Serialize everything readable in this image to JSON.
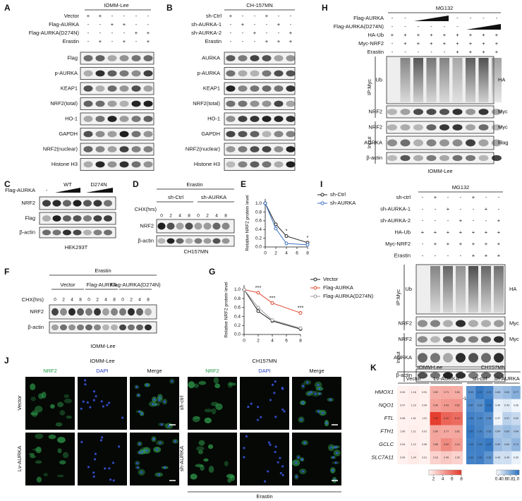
{
  "panels": {
    "A": {
      "letter": "A",
      "title": "IOMM-Lee",
      "conditions": [
        {
          "name": "Vector",
          "signs": [
            "+",
            "+",
            "-",
            "-",
            "-",
            "-"
          ]
        },
        {
          "name": "Flag-AURKA",
          "signs": [
            "-",
            "-",
            "+",
            "+",
            "-",
            "-"
          ]
        },
        {
          "name": "Flag-AURKA(D274N)",
          "signs": [
            "-",
            "-",
            "-",
            "-",
            "+",
            "+"
          ]
        },
        {
          "name": "Erastin",
          "signs": [
            "-",
            "+",
            "-",
            "+",
            "-",
            "+"
          ]
        }
      ],
      "bands": [
        "Flag",
        "p-AURKA",
        "KEAP1",
        "NRF2(total)",
        "HO-1",
        "GAPDH",
        "NRF2(nuclear)",
        "Histone H3"
      ]
    },
    "B": {
      "letter": "B",
      "title": "CH-157MN",
      "conditions": [
        {
          "name": "sh-Ctrl",
          "signs": [
            "+",
            "-",
            "-",
            "+",
            "-",
            "-"
          ]
        },
        {
          "name": "sh-AURKA-1",
          "signs": [
            "-",
            "+",
            "-",
            "-",
            "+",
            "-"
          ]
        },
        {
          "name": "sh-AURKA-2",
          "signs": [
            "-",
            "-",
            "+",
            "-",
            "-",
            "+"
          ]
        },
        {
          "name": "Erastin",
          "signs": [
            "-",
            "-",
            "-",
            "+",
            "+",
            "+"
          ]
        }
      ],
      "bands": [
        "AURKA",
        "p-AURKA",
        "KEAP1",
        "NRF2(total)",
        "HO-1",
        "GAPDH",
        "NRF2(nuclear)",
        "Histone H3"
      ]
    },
    "C": {
      "letter": "C",
      "row_label": "Flag-AURKA",
      "none": "-",
      "groups": [
        "WT",
        "D274N"
      ],
      "bands": [
        "NRF2",
        "Flag",
        "β-actin"
      ],
      "caption": "HEK293T"
    },
    "D": {
      "letter": "D",
      "treatment": "Erastin",
      "groups": [
        "sh-Ctrl",
        "sh-AURKA"
      ],
      "time_label": "CHX(hrs)",
      "times": [
        0,
        2,
        4,
        8,
        0,
        2,
        4,
        8
      ],
      "bands": [
        "NRF2",
        "β-actin"
      ],
      "caption": "CH157MN"
    },
    "E": {
      "letter": "E",
      "type": "line",
      "ylabel": "Relative NRF2 protein level",
      "x": [
        0,
        2,
        4,
        8
      ],
      "xlim": [
        0,
        8
      ],
      "xticks": [
        0,
        2,
        4,
        6,
        8
      ],
      "ylim": [
        0,
        1.1
      ],
      "yticks": [
        {
          "value": 0,
          "label": "0.0"
        },
        0.2,
        0.4,
        0.6,
        0.8,
        {
          "value": 1,
          "label": "1.0"
        }
      ],
      "series": [
        {
          "name": "sh-Ctrl",
          "color": "#222222",
          "values": [
            1,
            0.52,
            0.25,
            0.1
          ]
        },
        {
          "name": "sh-AURKA",
          "color": "#3a6fc4",
          "values": [
            1,
            0.42,
            0.08,
            0.05
          ]
        }
      ],
      "annotations": [
        {
          "text": "*",
          "x": 4
        },
        {
          "text": "*",
          "x": 8
        }
      ]
    },
    "F": {
      "letter": "F",
      "treatment": "Erastin",
      "groups": [
        "Vector",
        "Flag-AURKA",
        "Flag-AURKA(D274N)"
      ],
      "time_label": "CHX(hrs)",
      "times": [
        0,
        2,
        4,
        8,
        0,
        2,
        4,
        8,
        0,
        2,
        4,
        8
      ],
      "bands": [
        "NRF2",
        "β-actin"
      ],
      "caption": "IOMM-Lee"
    },
    "G": {
      "letter": "G",
      "type": "line",
      "ylabel": "Relative NRF2 protein level",
      "x": [
        0,
        2,
        4,
        8
      ],
      "xlim": [
        0,
        8
      ],
      "xticks": [
        0,
        2,
        4,
        6,
        8
      ],
      "ylim": [
        0,
        1.1
      ],
      "yticks": [
        {
          "value": 0,
          "label": "0.0"
        },
        0.2,
        0.4,
        0.6,
        0.8,
        {
          "value": 1,
          "label": "1.0"
        }
      ],
      "series": [
        {
          "name": "Vector",
          "color": "#222222",
          "values": [
            1,
            0.52,
            0.3,
            0.12
          ]
        },
        {
          "name": "Flag-AURKA",
          "color": "#e0452e",
          "values": [
            1,
            0.93,
            0.7,
            0.48
          ]
        },
        {
          "name": "Flag-AURKA(D274N)",
          "color": "#999999",
          "values": [
            1,
            0.6,
            0.32,
            0.14
          ]
        }
      ],
      "annotations": [
        {
          "text": "***",
          "x": 2
        },
        {
          "text": "***",
          "x": 4
        },
        {
          "text": "***",
          "x": 8
        }
      ]
    },
    "H": {
      "letter": "H",
      "treatment": "MG132",
      "conditions": [
        {
          "name": "Flag-AURKA",
          "signs": [
            "-",
            "-",
            null,
            null,
            null,
            "-",
            "-",
            "-",
            "-"
          ]
        },
        {
          "name": "Flag-AURKA(D274N)",
          "signs": [
            "-",
            "-",
            "-",
            "-",
            "-",
            "-",
            null,
            null,
            null
          ]
        },
        {
          "name": "HA-Ub",
          "signs": [
            "+",
            "+",
            "+",
            "+",
            "+",
            "+",
            "+",
            "+",
            "+"
          ]
        },
        {
          "name": "Myc-NRF2",
          "signs": [
            "-",
            "+",
            "+",
            "+",
            "+",
            "+",
            "+",
            "+",
            "+"
          ]
        },
        {
          "name": "Erastin",
          "signs": [
            "-",
            "-",
            "-",
            "-",
            "-",
            "+",
            "+",
            "+",
            "+"
          ]
        }
      ],
      "ip_label": "IP:Myc",
      "input_label": "Input",
      "bands": [
        {
          "name": "Ub",
          "tag": "HA"
        },
        {
          "name": "NRF2",
          "tag": "Myc"
        },
        {
          "name": "NRF2",
          "tag": "Myc"
        },
        {
          "name": "AURKA",
          "tag": "Flag"
        },
        {
          "name": "β-actin"
        }
      ],
      "caption": "IOMM-Lee"
    },
    "I": {
      "letter": "I",
      "treatment": "MG132",
      "conditions": [
        {
          "name": "sh-ctrl",
          "signs": [
            "-",
            "+",
            "-",
            "-",
            "+",
            "-",
            "-"
          ]
        },
        {
          "name": "sh-AURKA-1",
          "signs": [
            "-",
            "-",
            "+",
            "-",
            "-",
            "+",
            "-"
          ]
        },
        {
          "name": "sh-AURKA-2",
          "signs": [
            "-",
            "-",
            "-",
            "+",
            "-",
            "-",
            "+"
          ]
        },
        {
          "name": "HA-Ub",
          "signs": [
            "+",
            "+",
            "+",
            "+",
            "+",
            "+",
            "+"
          ]
        },
        {
          "name": "Myc-NRF2",
          "signs": [
            "-",
            "+",
            "+",
            "+",
            "+",
            "+",
            "+"
          ]
        },
        {
          "name": "Erastin",
          "signs": [
            "-",
            "-",
            "-",
            "-",
            "+",
            "+",
            "+"
          ]
        }
      ],
      "ip_label": "IP:Myc",
      "input_label": "Input",
      "bands": [
        {
          "name": "Ub",
          "tag": "HA"
        },
        {
          "name": "NRF2",
          "tag": "Myc"
        },
        {
          "name": "NRF2",
          "tag": "Myc"
        },
        {
          "name": "AURKA"
        },
        {
          "name": "β-actin"
        }
      ],
      "caption": "IOMM-Lee"
    },
    "J": {
      "letter": "J",
      "groups": [
        {
          "title": "IOMM-Lee",
          "channels": [
            "NRF2",
            "DAPI",
            "Merge"
          ],
          "rows": [
            "Vector",
            "Lv-AURKA"
          ]
        },
        {
          "title": "CH157MN",
          "channels": [
            "NRF2",
            "DAPI",
            "Merge"
          ],
          "rows": [
            "sh-ctrl",
            "sh-AURKA"
          ],
          "footer": "Erastin"
        }
      ]
    },
    "K": {
      "letter": "K",
      "genes": [
        "HMOX1",
        "NQO1",
        "FTL",
        "FTH1",
        "GCLC",
        "SLC7A11"
      ],
      "groups": [
        {
          "name": "IOMM-Lee",
          "subgroups": [
            "Vector",
            "Lv-AURKA"
          ],
          "colors": [
            "#fff1ee",
            "#e53b2c"
          ],
          "clim": [
            1,
            8
          ],
          "cticks": [
            2,
            4,
            6,
            8
          ],
          "values": [
            [
              0.94,
              1.16,
              0.91,
              3.59,
              3.71,
              3.63
            ],
            [
              0.97,
              1.1,
              0.94,
              4.06,
              4.43,
              4.52
            ],
            [
              0.98,
              1.01,
              1.01,
              7.92,
              6.42,
              6.13
            ],
            [
              1,
              1.11,
              0.91,
              3.89,
              3.77,
              3.81
            ],
            [
              0.94,
              1.12,
              0.96,
              3.88,
              4.92,
              4.24
            ],
            [
              0.99,
              1.24,
              0.91,
              2.18,
              2.49,
              2.2
            ]
          ],
          "value_labels": [
            [
              "0.94",
              "1.16",
              "0.91",
              "3.59",
              "3.71",
              "3.63"
            ],
            [
              "0.97",
              "1.10",
              "0.94",
              "4.06",
              "4.43",
              "4.52"
            ],
            [
              "0.98",
              "1.01",
              "1.01",
              "7.92",
              "6.42",
              "6.13"
            ],
            [
              "1.00",
              "1.11",
              "0.91",
              "3.89",
              "3.77",
              "3.81"
            ],
            [
              "0.94",
              "1.12",
              "0.96",
              "3.88",
              "4.92",
              "4.24"
            ],
            [
              "0.99",
              "1.24",
              "0.91",
              "2.18",
              "2.49",
              "2.20"
            ]
          ]
        },
        {
          "name": "CH157MN",
          "subgroups": [
            "sh-ctrl",
            "sh-AURKA"
          ],
          "colors": [
            "#f4f8fd",
            "#2f74c0"
          ],
          "clim": [
            0.35,
            1.1
          ],
          "cticks": [
            0.4,
            0.6,
            0.8,
            {
              "value": 1,
              "label": "1.0"
            }
          ],
          "values": [
            [
              0.93,
              1.07,
              1.01,
              0.65,
              0.69,
              0.77
            ],
            [
              0.97,
              0.93,
              1.12,
              0.4,
              0.43,
              0.36
            ],
            [
              1.03,
              1,
              0.95,
              0.37,
              0.57,
              0.52
            ],
            [
              1.07,
              1.01,
              0.92,
              0.64,
              0.69,
              0.64
            ],
            [
              1.03,
              1.03,
              1.07,
              0.69,
              0.64,
              0.73
            ],
            [
              1.02,
              1.03,
              0.92,
              0.49,
              0.49,
              0.39
            ]
          ],
          "value_labels": [
            [
              "0.93",
              "1.07",
              "1.01",
              "0.65",
              "0.69",
              "0.77"
            ],
            [
              "0.97",
              "0.93",
              "1.12",
              "0.40",
              "0.43",
              "0.36"
            ],
            [
              "1.03",
              "1.00",
              "0.95",
              "0.37",
              "0.57",
              "0.52"
            ],
            [
              "1.07",
              "1.01",
              "0.92",
              "0.64",
              "0.69",
              "0.64"
            ],
            [
              "1.03",
              "1.03",
              "1.07",
              "0.69",
              "0.64",
              "0.73"
            ],
            [
              "1.02",
              "1.03",
              "0.92",
              "0.49",
              "0.49",
              "0.39"
            ]
          ]
        }
      ]
    }
  }
}
